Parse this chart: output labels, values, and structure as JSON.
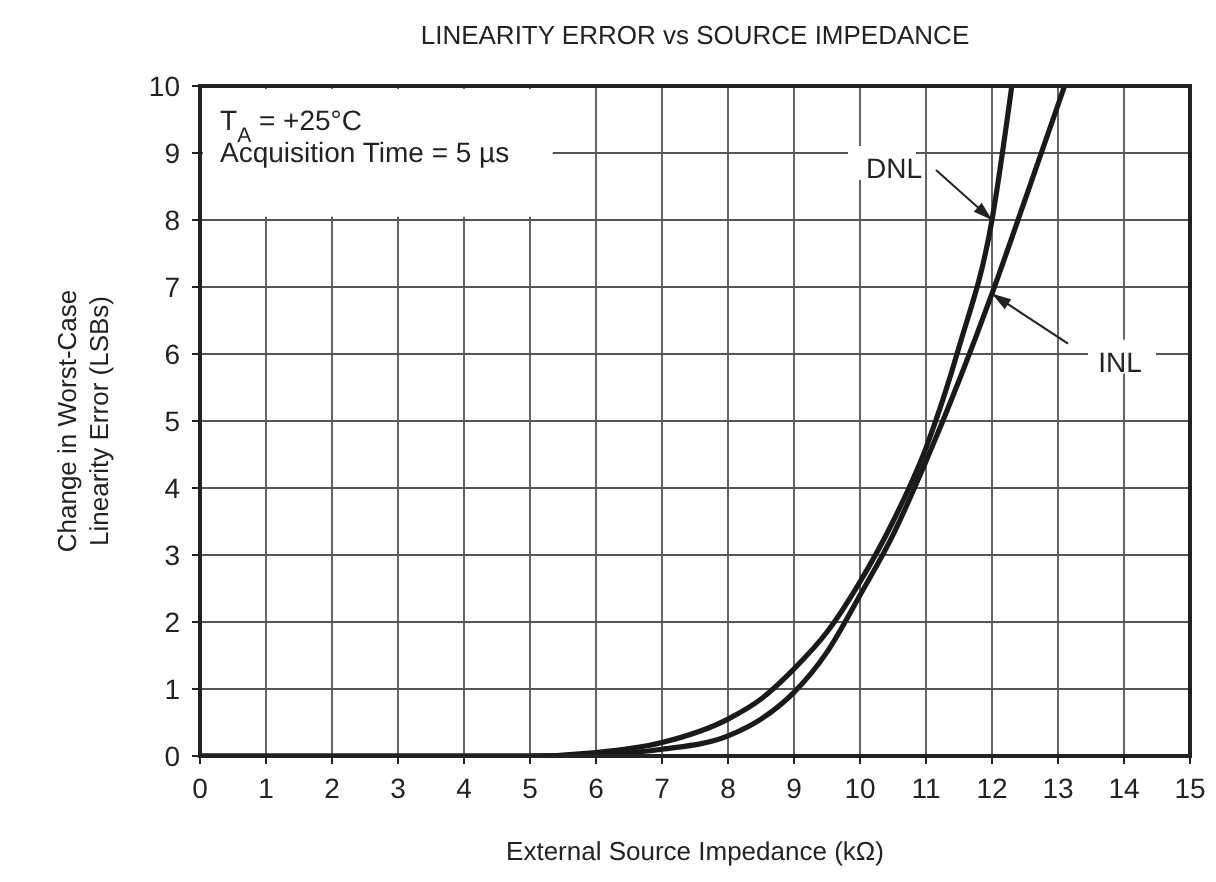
{
  "chart_data": {
    "type": "line",
    "title": "LINEARITY ERROR vs SOURCE IMPEDANCE",
    "xlabel": "External Source Impedance (kΩ)",
    "ylabel": "Change in Worst-Case\nLinearity Error (LSBs)",
    "annotations": [
      "T$_{A}$ = +25°C",
      "Acquisition Time = 5 µs",
      {
        "text": "DNL",
        "x": 12,
        "y": 8
      },
      {
        "text": "INL",
        "x": 12,
        "y": 6.9
      }
    ],
    "series": [
      {
        "color": "#1a1a1a",
        "x": [
          0,
          5,
          6,
          7,
          8,
          8.5,
          9,
          9.5,
          10,
          10.5,
          11,
          11.5,
          12,
          12.3
        ],
        "values": [
          0,
          0,
          0.05,
          0.2,
          0.55,
          0.85,
          1.3,
          1.85,
          2.6,
          3.5,
          4.6,
          6.1,
          8,
          10
        ]
      },
      {
        "color": "#1a1a1a",
        "x": [
          0,
          5,
          6,
          7,
          8,
          8.5,
          9,
          9.5,
          10,
          10.5,
          11,
          11.5,
          12,
          12.5,
          13.1
        ],
        "values": [
          0,
          0,
          0.02,
          0.1,
          0.3,
          0.55,
          0.95,
          1.55,
          2.4,
          3.3,
          4.4,
          5.6,
          6.9,
          8.3,
          10
        ]
      }
    ],
    "xlim": [
      0,
      15
    ],
    "ylim": [
      0,
      10
    ],
    "xticks": [
      0,
      1,
      2,
      3,
      4,
      5,
      6,
      7,
      8,
      9,
      10,
      11,
      12,
      13,
      14,
      15
    ],
    "yticks": [
      0,
      1,
      2,
      3,
      4,
      5,
      6,
      7,
      8,
      9,
      10
    ],
    "grid": true,
    "line_style": "solid",
    "marker": "none"
  }
}
